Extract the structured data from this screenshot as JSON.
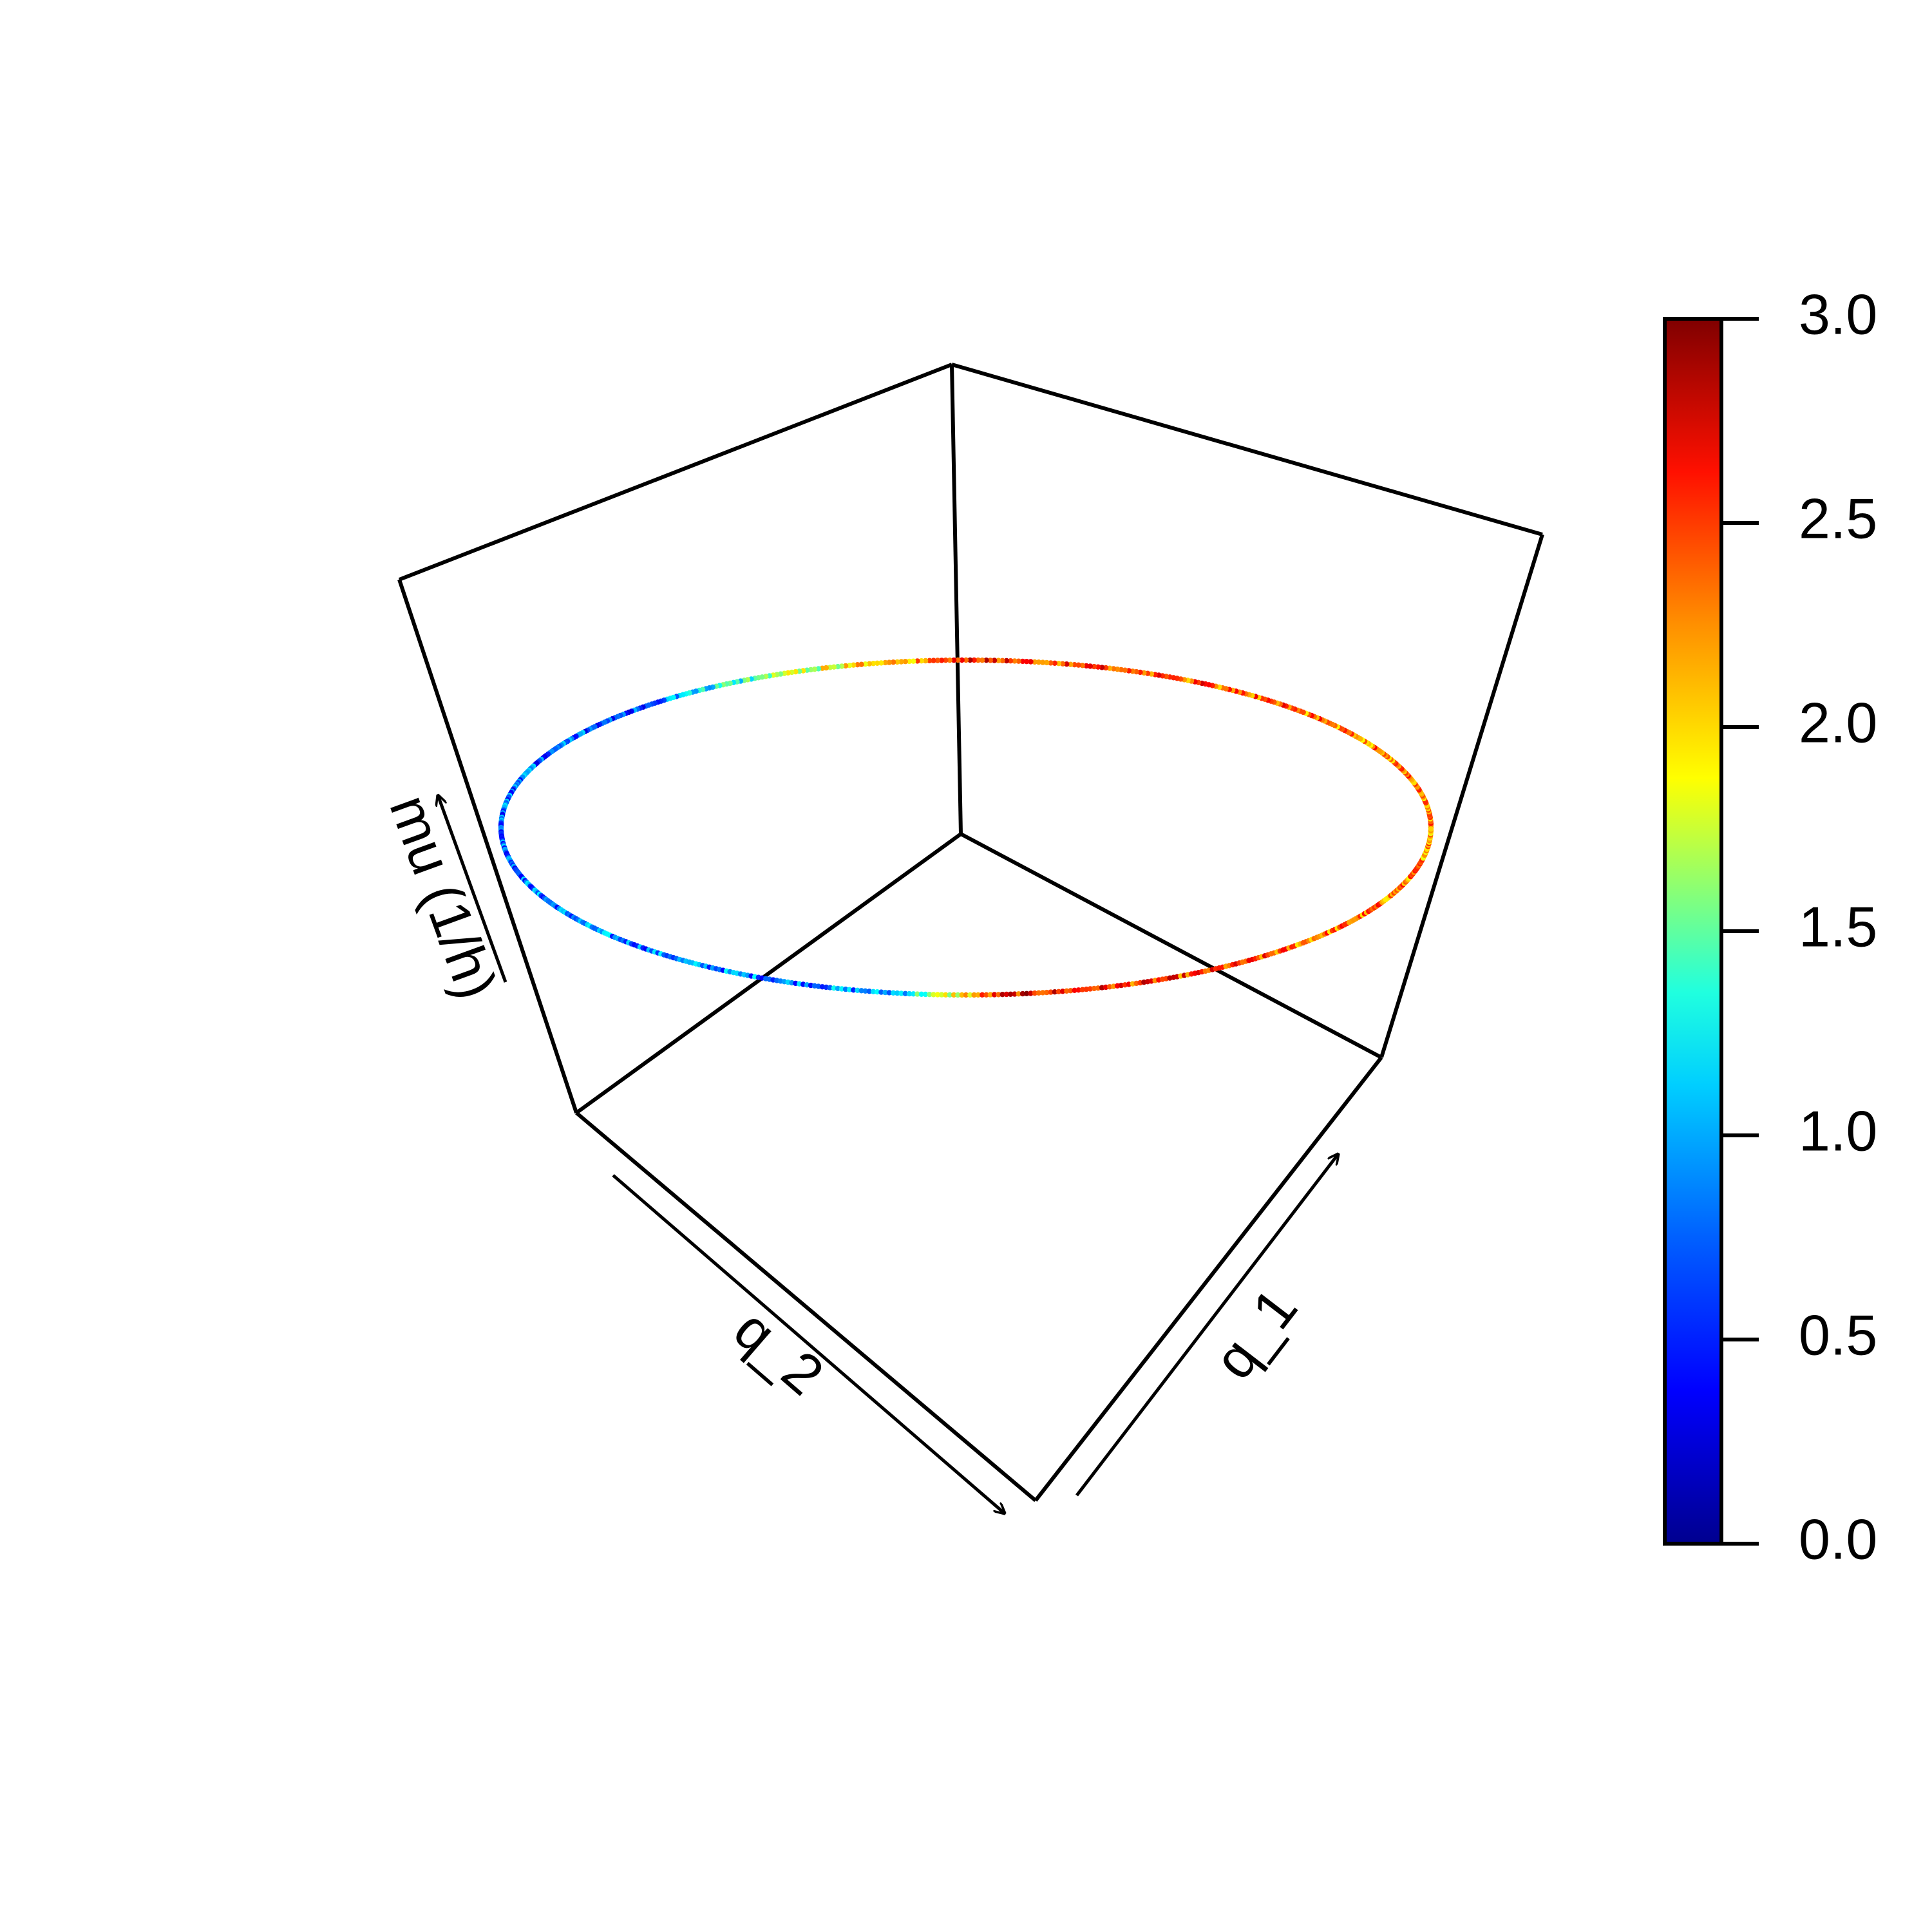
{
  "chart_data": {
    "type": "scatter3d",
    "axes": {
      "x": {
        "label": "q_1"
      },
      "y": {
        "label": "q_2"
      },
      "z": {
        "label": "mu (1/h)"
      }
    },
    "colorbar": {
      "ticks": [
        "0.0",
        "0.5",
        "1.0",
        "1.5",
        "2.0",
        "2.5",
        "3.0"
      ],
      "range": [
        0,
        3
      ],
      "palette": [
        "#00008F",
        "#0000FF",
        "#0080FF",
        "#00FFFF",
        "#80FF80",
        "#FFFF00",
        "#FF8000",
        "#FF0000",
        "#800000"
      ]
    },
    "series": [
      {
        "shape": "circle",
        "points": 720,
        "value_by_angle_deg": [
          {
            "angle": 0,
            "value": 2.2
          },
          {
            "angle": 45,
            "value": 2.3
          },
          {
            "angle": 90,
            "value": 2.5
          },
          {
            "angle": 135,
            "value": 0.6
          },
          {
            "angle": 180,
            "value": 0.7
          },
          {
            "angle": 225,
            "value": 0.75
          },
          {
            "angle": 260,
            "value": 0.8
          },
          {
            "angle": 275,
            "value": 2.6
          },
          {
            "angle": 315,
            "value": 2.3
          },
          {
            "angle": 360,
            "value": 2.2
          }
        ]
      }
    ]
  }
}
